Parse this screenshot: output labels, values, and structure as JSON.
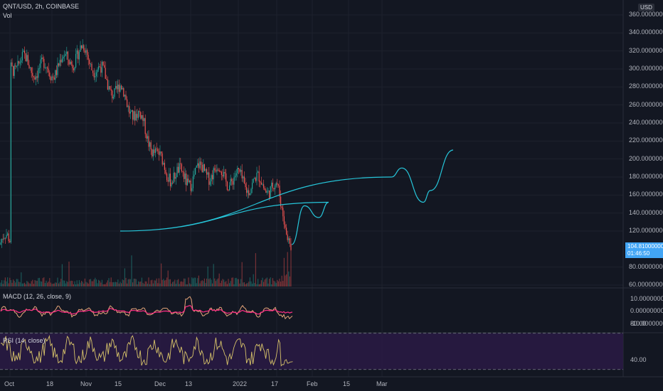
{
  "header": {
    "symbol_line": "QNT/USD, 2h, COINBASE",
    "vol_label": "Vol"
  },
  "currency_label": "USD",
  "last_price": {
    "value": "104.81000000",
    "countdown": "01:46:50"
  },
  "macd": {
    "title": "MACD (12, 26, close, 9)"
  },
  "rsi": {
    "title": "RSI (14, close)"
  },
  "colors": {
    "background": "#131722",
    "up": "#26a69a",
    "down": "#ef5350",
    "projection": "#26c6da",
    "macd_line": "#e6a57a",
    "signal_line": "#ff2e86",
    "rsi_line": "#d8c46a",
    "rsi_band": "#2a1a44",
    "price_tag": "#42a5f5"
  },
  "chart_data": [
    {
      "type": "candlestick",
      "title": "QNT/USD, 2h, COINBASE",
      "ylim": [
        60,
        360
      ],
      "y_ticks": [
        "360.00000000",
        "340.00000000",
        "320.00000000",
        "300.00000000",
        "280.00000000",
        "260.00000000",
        "240.00000000",
        "220.00000000",
        "200.00000000",
        "180.00000000",
        "160.00000000",
        "140.00000000",
        "120.00000000",
        "80.00000000",
        "60.00000000"
      ],
      "x_ticks": [
        "Oct",
        "18",
        "Nov",
        "15",
        "Dec",
        "13",
        "2022",
        "17",
        "Feb",
        "15",
        "Mar"
      ],
      "close_path": [
        [
          "Oct",
          300
        ],
        [
          "18",
          305
        ],
        [
          "Nov",
          312
        ],
        [
          "15",
          278
        ],
        [
          "Dec",
          195
        ],
        [
          "13",
          180
        ],
        [
          "2022",
          183
        ],
        [
          "17",
          160
        ],
        [
          "~Jan 20",
          105
        ]
      ],
      "projection": [
        [
          "~Jan 20",
          105
        ],
        [
          "~Jan 25",
          148
        ],
        [
          "~Feb 1",
          135
        ],
        [
          "~Feb 5",
          152
        ],
        [
          "15",
          120
        ],
        [
          "~Feb 22",
          180
        ],
        [
          "~Feb 28",
          190
        ],
        [
          "~Mar 8",
          152
        ],
        [
          "~Mar 12",
          165
        ],
        [
          "~Mar 20",
          210
        ]
      ]
    },
    {
      "type": "line",
      "title": "MACD (12, 26, close, 9)",
      "ylim": [
        -10,
        10
      ],
      "y_ticks": [
        "10.00000000",
        "0.00000000",
        "-10.00000000"
      ]
    },
    {
      "type": "line",
      "title": "RSI (14, close)",
      "ylim": [
        30,
        80
      ],
      "band": [
        30,
        70
      ],
      "y_ticks": [
        "80.00",
        "40.00"
      ]
    }
  ]
}
